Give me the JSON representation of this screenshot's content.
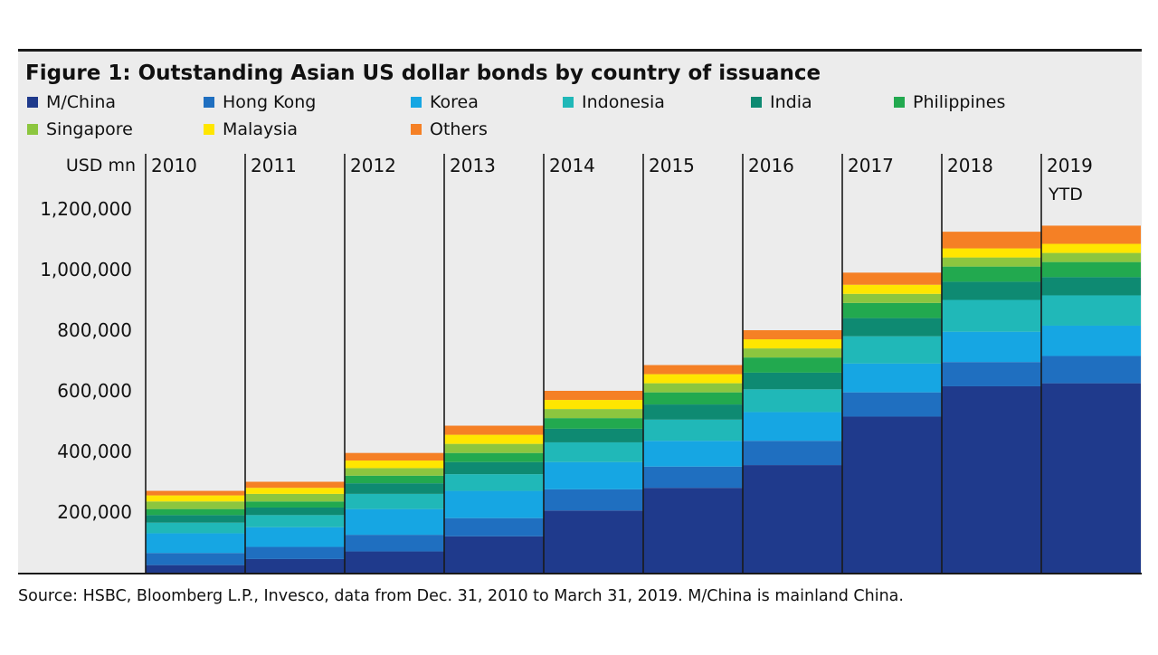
{
  "chart_data": {
    "type": "bar",
    "stacked": true,
    "title": "Figure 1: Outstanding Asian US dollar bonds by country of issuance",
    "ylabel": "USD mn",
    "ylim": [
      0,
      1300000
    ],
    "yticks": [
      200000,
      400000,
      600000,
      800000,
      1000000,
      1200000
    ],
    "ytick_labels": [
      "200,000",
      "400,000",
      "600,000",
      "800,000",
      "1,000,000",
      "1,200,000"
    ],
    "grid": false,
    "legend_position": "top",
    "categories": [
      {
        "label": "2010",
        "sublabel": ""
      },
      {
        "label": "2011",
        "sublabel": ""
      },
      {
        "label": "2012",
        "sublabel": ""
      },
      {
        "label": "2013",
        "sublabel": ""
      },
      {
        "label": "2014",
        "sublabel": ""
      },
      {
        "label": "2015",
        "sublabel": ""
      },
      {
        "label": "2016",
        "sublabel": ""
      },
      {
        "label": "2017",
        "sublabel": ""
      },
      {
        "label": "2018",
        "sublabel": ""
      },
      {
        "label": "2019",
        "sublabel": "YTD"
      }
    ],
    "series": [
      {
        "name": "M/China",
        "color": "#1f3a8c",
        "values": [
          25000,
          45000,
          70000,
          120000,
          205000,
          280000,
          355000,
          515000,
          615000,
          625000
        ]
      },
      {
        "name": "Hong Kong",
        "color": "#1f6fc0",
        "values": [
          40000,
          40000,
          55000,
          60000,
          70000,
          70000,
          80000,
          80000,
          80000,
          90000
        ]
      },
      {
        "name": "Korea",
        "color": "#16a6e3",
        "values": [
          65000,
          65000,
          85000,
          90000,
          90000,
          85000,
          95000,
          95000,
          100000,
          100000
        ]
      },
      {
        "name": "Indonesia",
        "color": "#20b8b8",
        "values": [
          35000,
          40000,
          50000,
          55000,
          65000,
          70000,
          75000,
          90000,
          105000,
          100000
        ]
      },
      {
        "name": "India",
        "color": "#0e8a72",
        "values": [
          25000,
          25000,
          35000,
          40000,
          45000,
          50000,
          55000,
          60000,
          60000,
          60000
        ]
      },
      {
        "name": "Philippines",
        "color": "#22a94f",
        "values": [
          20000,
          20000,
          25000,
          30000,
          35000,
          40000,
          50000,
          50000,
          50000,
          50000
        ]
      },
      {
        "name": "Singapore",
        "color": "#8cc63f",
        "values": [
          25000,
          25000,
          25000,
          30000,
          30000,
          30000,
          30000,
          30000,
          30000,
          30000
        ]
      },
      {
        "name": "Malaysia",
        "color": "#ffe600",
        "values": [
          20000,
          20000,
          25000,
          30000,
          30000,
          30000,
          30000,
          30000,
          30000,
          30000
        ]
      },
      {
        "name": "Others",
        "color": "#f58025",
        "values": [
          15000,
          20000,
          25000,
          30000,
          30000,
          30000,
          30000,
          40000,
          55000,
          60000
        ]
      }
    ],
    "source": "Source: HSBC, Bloomberg L.P., Invesco, data from Dec. 31, 2010 to March 31, 2019. M/China is mainland China."
  }
}
